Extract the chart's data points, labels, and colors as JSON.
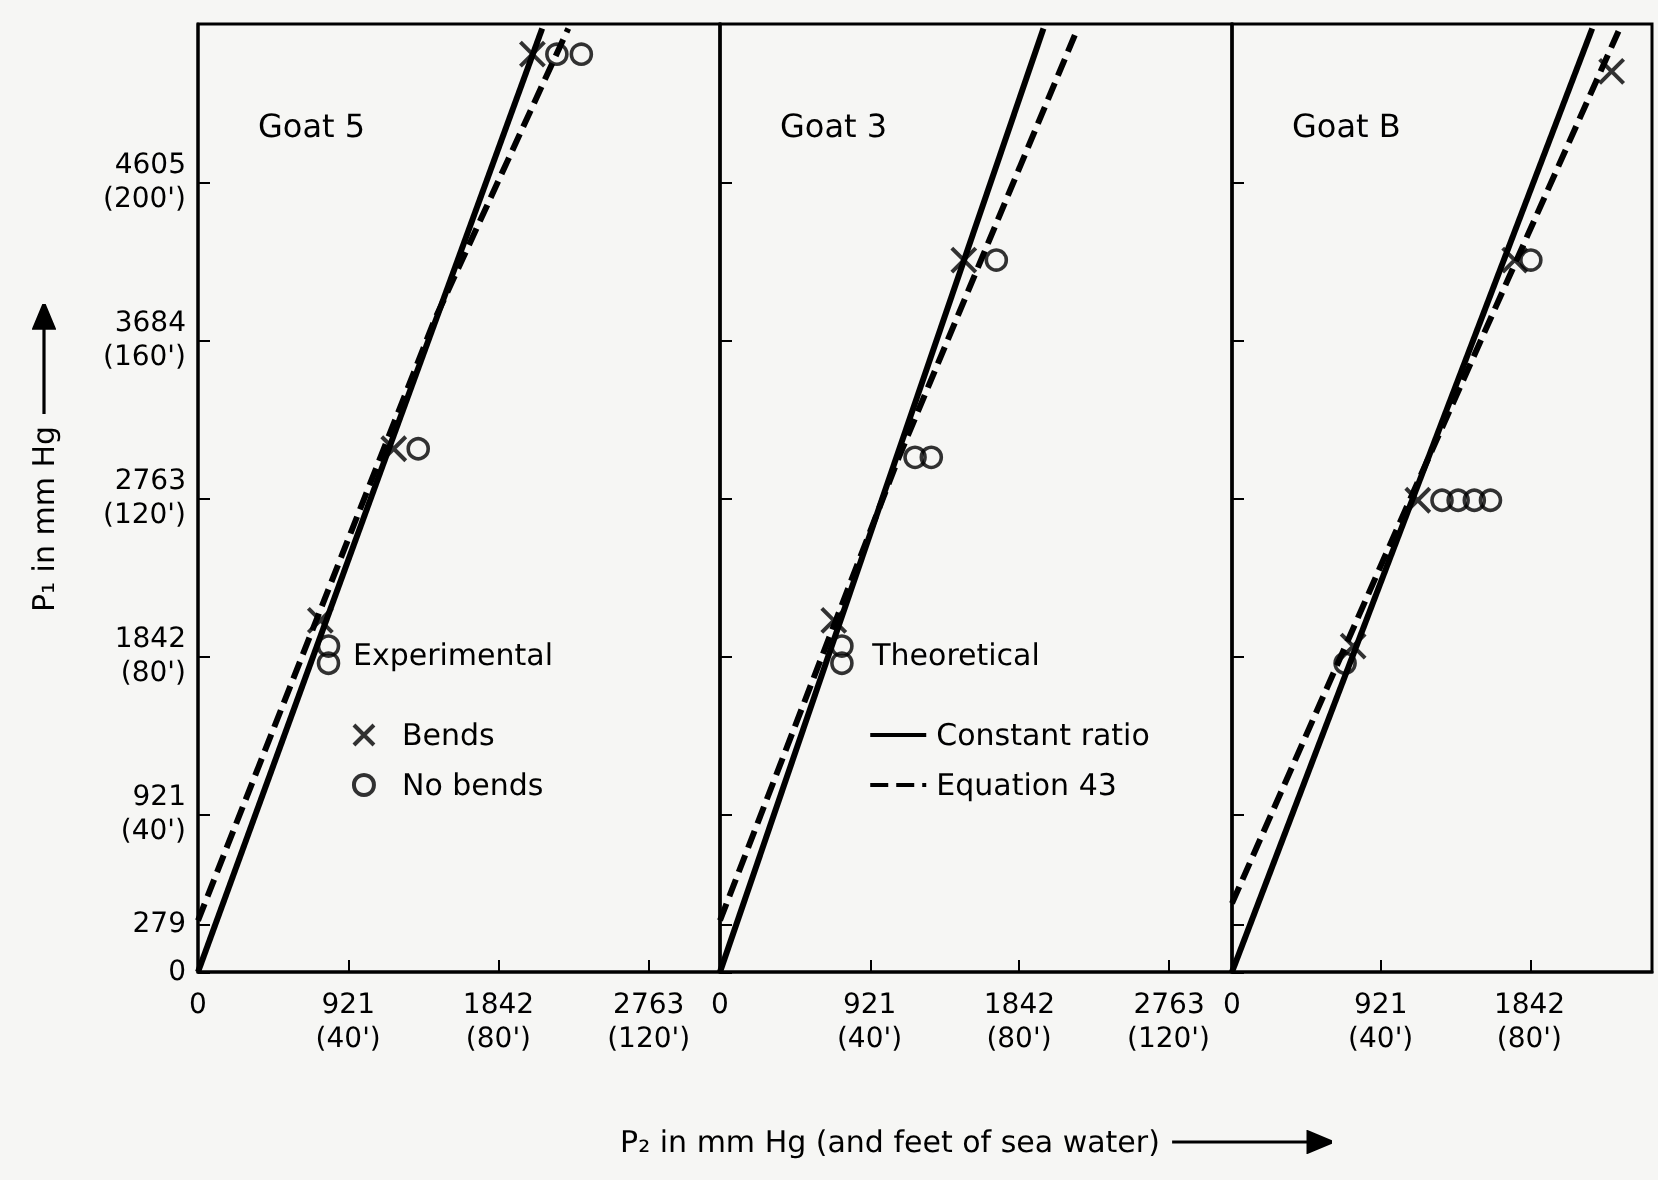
{
  "chart_data": [
    {
      "type": "line",
      "title": "Goat 5",
      "ylabel": "P₁ in mm Hg",
      "legend_title": "Experimental",
      "legend": "right",
      "xlim": [
        0,
        3200
      ],
      "ylim": [
        0,
        5526
      ],
      "x2lim": [
        0,
        139
      ],
      "xticks": [
        0,
        921,
        1842,
        2763
      ],
      "x2ticks": [
        {
          "value": 40,
          "label": "(40')"
        },
        {
          "value": 80,
          "label": "(80')"
        },
        {
          "value": 120,
          "label": "(120')"
        }
      ],
      "yticks": [
        0,
        279,
        {
          "value": 921,
          "label": "921\n(40')"
        },
        {
          "value": 1842,
          "label": "1842\n(80')"
        },
        {
          "value": 2763,
          "label": "2763\n(120')"
        },
        {
          "value": 3684,
          "label": "3684\n(160')"
        },
        {
          "value": 4605,
          "label": "4605\n(200')"
        }
      ],
      "series": [
        {
          "color": "#000000",
          "line_style": "solid",
          "marker": "none",
          "x": [
            0,
            2110
          ],
          "values": [
            0,
            5500
          ]
        },
        {
          "color": "#000000",
          "line_style": "dashed",
          "marker": "none",
          "x": [
            0,
            1450,
            2270
          ],
          "values": [
            300,
            3800,
            5500
          ]
        },
        {
          "type": "scatter",
          "name": "Bends",
          "color": "#000000",
          "marker": "cross",
          "x": [
            750,
            1200,
            2050
          ],
          "values": [
            2050,
            3050,
            5350
          ]
        },
        {
          "type": "scatter",
          "name": "No bends",
          "color": "#000000",
          "marker": "circle",
          "x": [
            800,
            800,
            1350,
            2200,
            2350
          ],
          "values": [
            1900,
            1800,
            3050,
            5350,
            5350
          ]
        }
      ]
    },
    {
      "type": "line",
      "title": "Goat 3",
      "xlabel": "P₂ in mm Hg (and feet of sea water)",
      "legend_title": "Theoretical",
      "legend": "right",
      "tick_labels": "x",
      "xlim": [
        0,
        3150
      ],
      "ylim": [
        0,
        5526
      ],
      "x2lim": [
        0,
        137
      ],
      "xticks": [
        0,
        921,
        1842,
        2763
      ],
      "x2ticks": [
        {
          "value": 40,
          "label": "(40')"
        },
        {
          "value": 80,
          "label": "(80')"
        },
        {
          "value": 120,
          "label": "(120')"
        }
      ],
      "yticks": [
        0,
        279,
        921,
        1842,
        2763,
        3684,
        4605
      ],
      "series": [
        {
          "name": "Constant ratio",
          "color": "#000000",
          "line_style": "solid",
          "marker": "none",
          "x": [
            0,
            1990
          ],
          "values": [
            0,
            5500
          ]
        },
        {
          "name": "Equation 43",
          "color": "#000000",
          "line_style": "dashed",
          "marker": "none",
          "x": [
            0,
            1100,
            2200
          ],
          "values": [
            300,
            3000,
            5500
          ]
        },
        {
          "type": "scatter",
          "color": "#000000",
          "marker": "cross",
          "x": [
            700,
            1500
          ],
          "values": [
            2050,
            4150
          ]
        },
        {
          "type": "scatter",
          "color": "#000000",
          "marker": "circle",
          "x": [
            750,
            750,
            1200,
            1300,
            1700
          ],
          "values": [
            1900,
            1800,
            3000,
            3000,
            4150
          ]
        }
      ]
    },
    {
      "type": "line",
      "title": "Goat B",
      "tick_labels": "x",
      "xlim": [
        0,
        2600
      ],
      "ylim": [
        0,
        5526
      ],
      "x2lim": [
        0,
        113
      ],
      "xticks": [
        0,
        921,
        1842
      ],
      "x2ticks": [
        {
          "value": 40,
          "label": "(40')"
        },
        {
          "value": 80,
          "label": "(80')"
        }
      ],
      "yticks": [
        0,
        279,
        921,
        1842,
        2763,
        3684,
        4605
      ],
      "series": [
        {
          "color": "#000000",
          "line_style": "solid",
          "marker": "none",
          "x": [
            0,
            2230
          ],
          "values": [
            0,
            5500
          ]
        },
        {
          "color": "#000000",
          "line_style": "dashed",
          "marker": "none",
          "x": [
            0,
            1100,
            2400
          ],
          "values": [
            400,
            2750,
            5500
          ]
        },
        {
          "type": "scatter",
          "color": "#000000",
          "marker": "cross",
          "x": [
            750,
            1150,
            1750,
            2350
          ],
          "values": [
            1900,
            2750,
            4150,
            5250
          ]
        },
        {
          "type": "scatter",
          "color": "#000000",
          "marker": "circle",
          "x": [
            700,
            1300,
            1400,
            1500,
            1600,
            1850
          ],
          "values": [
            1800,
            2750,
            2750,
            2750,
            2750,
            4150
          ]
        }
      ]
    }
  ]
}
